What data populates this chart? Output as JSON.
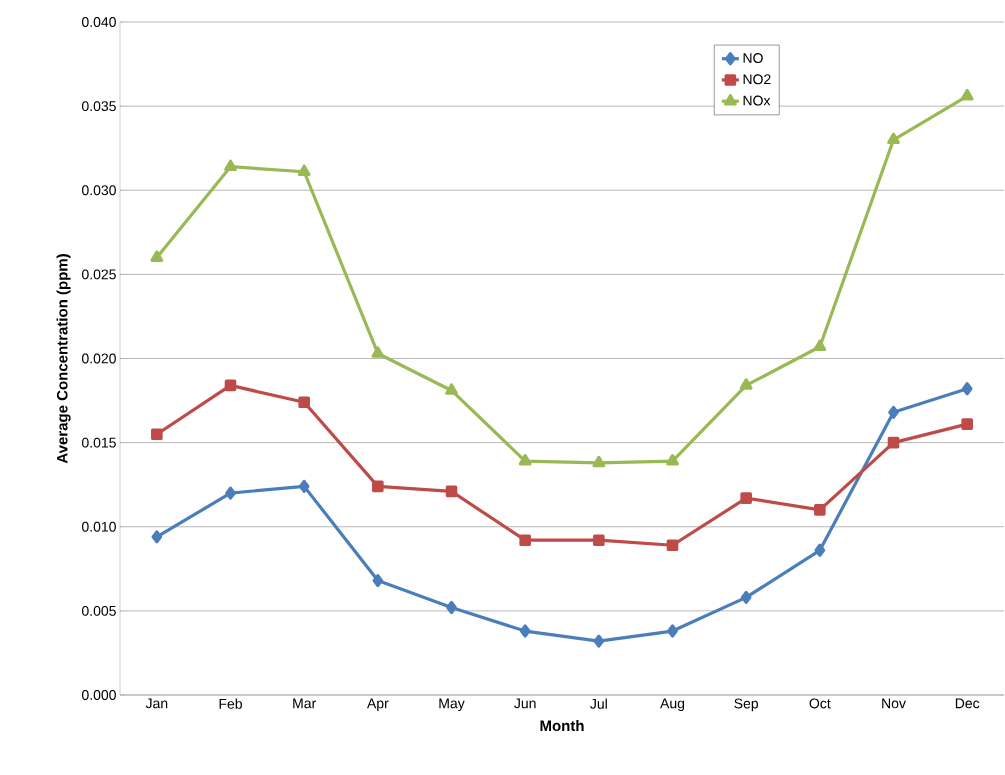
{
  "chart_data": {
    "type": "line",
    "xlabel": "Month",
    "ylabel": "Average Concentration (ppm)",
    "categories": [
      "Jan",
      "Feb",
      "Mar",
      "Apr",
      "May",
      "Jun",
      "Jul",
      "Aug",
      "Sep",
      "Oct",
      "Nov",
      "Dec"
    ],
    "series": [
      {
        "name": "NO",
        "color": "#4a7ebb",
        "marker": "diamond",
        "values": [
          0.0094,
          0.012,
          0.0124,
          0.0068,
          0.0052,
          0.0038,
          0.0032,
          0.0038,
          0.0058,
          0.0086,
          0.0168,
          0.0182
        ]
      },
      {
        "name": "NO2",
        "color": "#be4b48",
        "marker": "square",
        "values": [
          0.0155,
          0.0184,
          0.0174,
          0.0124,
          0.0121,
          0.0092,
          0.0092,
          0.0089,
          0.0117,
          0.011,
          0.015,
          0.0161
        ]
      },
      {
        "name": "NOx",
        "color": "#98b954",
        "marker": "triangle",
        "values": [
          0.026,
          0.0314,
          0.0311,
          0.0203,
          0.0181,
          0.0139,
          0.0138,
          0.0139,
          0.0184,
          0.0207,
          0.033,
          0.0356
        ]
      }
    ],
    "ylim": [
      0,
      0.04
    ],
    "yticks": [
      {
        "value": 0,
        "label": "0.000"
      },
      {
        "value": 0.005,
        "label": "0.005"
      },
      {
        "value": 0.01,
        "label": "0.010"
      },
      {
        "value": 0.015,
        "label": "0.015"
      },
      {
        "value": 0.02,
        "label": "0.020"
      },
      {
        "value": 0.025,
        "label": "0.025"
      },
      {
        "value": 0.03,
        "label": "0.030"
      },
      {
        "value": 0.035,
        "label": "0.035"
      },
      {
        "value": 0.04,
        "label": "0.040"
      }
    ],
    "grid": "y",
    "legend": "top right",
    "line_style": "solid"
  }
}
